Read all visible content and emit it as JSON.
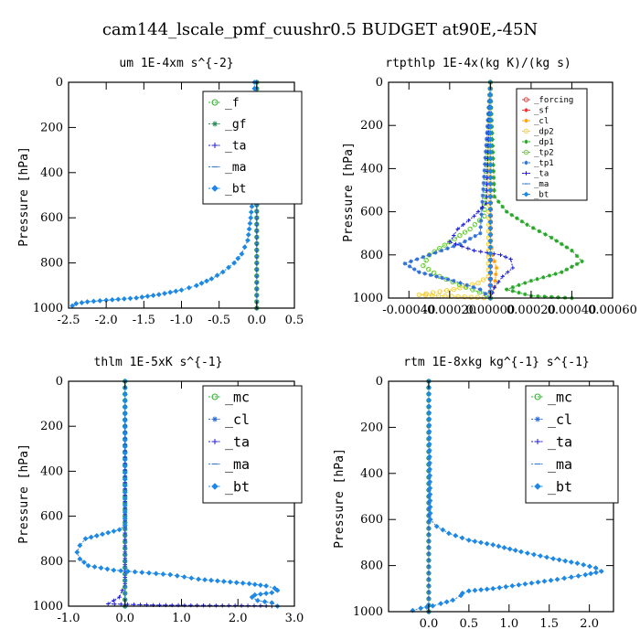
{
  "figure": {
    "title": "cam144_lscale_pmf_cuushr0.5  BUDGET at90E,-45N"
  },
  "chart_data": [
    {
      "type": "line",
      "title": "um  1E-4xm s^{-2}",
      "ylabel": "Pressure [hPa]",
      "xlabel": "",
      "xlim": [
        -2.5,
        0.5
      ],
      "ylim": [
        1000,
        0
      ],
      "xticks": [
        -2.5,
        -2.0,
        -1.5,
        -1.0,
        -0.5,
        0.0,
        0.5
      ],
      "xtick_labels": [
        "-2.5",
        "-2.0",
        "-1.5",
        "-1.0",
        "-0.5",
        "0.0",
        "0.5"
      ],
      "yticks": [
        0,
        200,
        400,
        600,
        800,
        1000
      ],
      "ytick_labels": [
        "0",
        "200",
        "400",
        "600",
        "800",
        "1000"
      ],
      "legend_position": "top-right",
      "series": [
        {
          "name": "_f",
          "color": "#2db52d",
          "marker": "circle",
          "x": [
            0,
            0
          ],
          "y": [
            0,
            1000
          ]
        },
        {
          "name": "_gf",
          "color": "#2e8b57",
          "marker": "star",
          "x": [
            0,
            0
          ],
          "y": [
            0,
            1000
          ]
        },
        {
          "name": "_ta",
          "color": "#1f1fd6",
          "marker": "plus",
          "x": [
            0,
            0
          ],
          "y": [
            0,
            1000
          ]
        },
        {
          "name": "_ma",
          "color": "#3a7fd0",
          "marker": "dash",
          "x": [
            0,
            0
          ],
          "y": [
            0,
            1000
          ]
        },
        {
          "name": "_bt",
          "color": "#1e88e5",
          "marker": "diamond",
          "x": [
            -0.03,
            -0.05,
            -0.08,
            -0.12,
            -0.2,
            -0.3,
            -0.45,
            -0.6,
            -0.8,
            -1.0,
            -1.3,
            -1.6,
            -2.0,
            -2.25,
            -2.4,
            -2.45
          ],
          "y": [
            0,
            500,
            600,
            700,
            760,
            800,
            840,
            870,
            900,
            920,
            940,
            955,
            965,
            972,
            980,
            990
          ]
        }
      ]
    },
    {
      "type": "line",
      "title": "rtpthlp  1E-4x(kg K)/(kg s)",
      "ylabel": "Pressure [hPa]",
      "xlabel": "",
      "xlim": [
        -0.0005,
        0.0006
      ],
      "ylim": [
        1000,
        0
      ],
      "xticks": [
        -0.0004,
        -0.0002,
        0.0,
        0.0002,
        0.0004,
        0.0006
      ],
      "xtick_labels": [
        "-0.00040",
        "-0.00020",
        "0.00000",
        "0.00020",
        "0.00040",
        "0.00060"
      ],
      "yticks": [
        0,
        200,
        400,
        600,
        800,
        1000
      ],
      "ytick_labels": [
        "0",
        "200",
        "400",
        "600",
        "800",
        "1000"
      ],
      "legend_position": "top-right",
      "series": [
        {
          "name": "_forcing",
          "color": "#e53935",
          "marker": "circle",
          "x": [
            0,
            0
          ],
          "y": [
            0,
            1000
          ]
        },
        {
          "name": "_sf",
          "color": "#ff3030",
          "marker": "star",
          "x": [
            0,
            0
          ],
          "y": [
            0,
            1000
          ]
        },
        {
          "name": "_cl",
          "color": "#ffa000",
          "marker": "star",
          "x": [
            0,
            0,
            1e-05,
            3e-05,
            2e-05,
            0
          ],
          "y": [
            0,
            700,
            800,
            860,
            950,
            1000
          ]
        },
        {
          "name": "_dp2",
          "color": "#f4d03f",
          "marker": "circle",
          "x": [
            0,
            -1e-05,
            -6e-05,
            -0.00018,
            -0.00035,
            0
          ],
          "y": [
            0,
            900,
            930,
            960,
            985,
            1000
          ]
        },
        {
          "name": "_dp1",
          "color": "#26a626",
          "marker": "star",
          "x": [
            0,
            2e-05,
            8e-05,
            0.00018,
            0.0003,
            0.0004,
            0.00045,
            0.00035,
            0.0002,
            8e-05,
            0.0002,
            0.0004
          ],
          "y": [
            0,
            530,
            600,
            660,
            720,
            780,
            830,
            880,
            920,
            960,
            990,
            1000
          ]
        },
        {
          "name": "_tp2",
          "color": "#66cc33",
          "marker": "circle",
          "x": [
            0,
            -3e-05,
            -0.0001,
            -0.0002,
            -0.0003,
            -0.00033,
            -0.00025,
            -0.00012,
            -2e-05,
            0
          ],
          "y": [
            0,
            620,
            680,
            740,
            800,
            850,
            900,
            950,
            985,
            1000
          ]
        },
        {
          "name": "_tp1",
          "color": "#2f6fd6",
          "marker": "star",
          "x": [
            0,
            -5e-05,
            -0.00015,
            -0.0003,
            -0.00042,
            -0.00035,
            -0.00018,
            -5e-05,
            0
          ],
          "y": [
            0,
            700,
            750,
            800,
            840,
            880,
            920,
            960,
            1000
          ]
        },
        {
          "name": "_ta",
          "color": "#1f1fd6",
          "marker": "plus",
          "x": [
            0,
            -2e-05,
            -8e-05,
            -0.00016,
            -0.0002,
            -8e-05,
            5e-05,
            0.0001,
            0.00011,
            6e-05,
            2e-05,
            0
          ],
          "y": [
            0,
            560,
            620,
            680,
            740,
            780,
            800,
            820,
            860,
            900,
            950,
            1000
          ]
        },
        {
          "name": "_ma",
          "color": "#3a7fd0",
          "marker": "dash",
          "x": [
            0,
            0
          ],
          "y": [
            0,
            1000
          ]
        },
        {
          "name": "_bt",
          "color": "#1e88e5",
          "marker": "diamond",
          "x": [
            0,
            0
          ],
          "y": [
            0,
            1000
          ]
        }
      ]
    },
    {
      "type": "line",
      "title": "thlm  1E-5xK s^{-1}",
      "ylabel": "Pressure [hPa]",
      "xlabel": "",
      "xlim": [
        -1.0,
        3.0
      ],
      "ylim": [
        1000,
        0
      ],
      "xticks": [
        -1.0,
        0.0,
        1.0,
        2.0,
        3.0
      ],
      "xtick_labels": [
        "-1.0",
        "0.0",
        "1.0",
        "2.0",
        "3.0"
      ],
      "yticks": [
        0,
        200,
        400,
        600,
        800,
        1000
      ],
      "ytick_labels": [
        "0",
        "200",
        "400",
        "600",
        "800",
        "1000"
      ],
      "legend_position": "top-right",
      "series": [
        {
          "name": "_mc",
          "color": "#2db52d",
          "marker": "circle",
          "x": [
            0,
            0
          ],
          "y": [
            0,
            1000
          ]
        },
        {
          "name": "_cl",
          "color": "#2f6fd6",
          "marker": "star",
          "x": [
            0,
            0
          ],
          "y": [
            0,
            1000
          ]
        },
        {
          "name": "_ta",
          "color": "#1f1fd6",
          "marker": "plus",
          "x": [
            0,
            0,
            -0.1,
            -0.3,
            0.5,
            1.5,
            2.4,
            2.6
          ],
          "y": [
            0,
            900,
            960,
            990,
            995,
            997,
            998,
            1000
          ]
        },
        {
          "name": "_ma",
          "color": "#3a7fd0",
          "marker": "dash",
          "x": [
            0,
            0
          ],
          "y": [
            0,
            1000
          ]
        },
        {
          "name": "_bt",
          "color": "#1e88e5",
          "marker": "diamond",
          "x": [
            0,
            0,
            -0.1,
            -0.4,
            -0.7,
            -0.8,
            -0.85,
            -0.8,
            -0.65,
            -0.2,
            0.3,
            0.8,
            1.3,
            1.75,
            2.2,
            2.5,
            2.65,
            2.7,
            2.6,
            2.3,
            2.25,
            2.35,
            2.6,
            2.7
          ],
          "y": [
            0,
            640,
            660,
            680,
            700,
            730,
            760,
            790,
            820,
            840,
            850,
            860,
            880,
            890,
            900,
            910,
            920,
            930,
            940,
            950,
            960,
            975,
            985,
            1000
          ]
        }
      ]
    },
    {
      "type": "line",
      "title": "rtm  1E-8xkg kg^{-1} s^{-1}",
      "ylabel": "Pressure [hPa]",
      "xlabel": "",
      "xlim": [
        -0.5,
        2.3
      ],
      "ylim": [
        1000,
        0
      ],
      "xticks": [
        0.0,
        0.5,
        1.0,
        1.5,
        2.0
      ],
      "xtick_labels": [
        "0.0",
        "0.5",
        "1.0",
        "1.5",
        "2.0"
      ],
      "yticks": [
        0,
        200,
        400,
        600,
        800,
        1000
      ],
      "ytick_labels": [
        "0",
        "200",
        "400",
        "600",
        "800",
        "1000"
      ],
      "legend_position": "top-right",
      "series": [
        {
          "name": "_mc",
          "color": "#2db52d",
          "marker": "circle",
          "x": [
            0,
            0
          ],
          "y": [
            0,
            1000
          ]
        },
        {
          "name": "_cl",
          "color": "#2f6fd6",
          "marker": "star",
          "x": [
            0,
            0
          ],
          "y": [
            0,
            1000
          ]
        },
        {
          "name": "_ta",
          "color": "#1f1fd6",
          "marker": "plus",
          "x": [
            0,
            0
          ],
          "y": [
            0,
            1000
          ]
        },
        {
          "name": "_ma",
          "color": "#3a7fd0",
          "marker": "dash",
          "x": [
            0,
            0
          ],
          "y": [
            0,
            1000
          ]
        },
        {
          "name": "_bt",
          "color": "#1e88e5",
          "marker": "diamond",
          "x": [
            0,
            0.02,
            0.1,
            0.25,
            0.5,
            0.8,
            1.15,
            1.55,
            1.85,
            2.08,
            2.15,
            1.95,
            1.6,
            1.2,
            0.8,
            0.5,
            0.42,
            0.4,
            0.3,
            0.15,
            0.05,
            -0.1,
            -0.2
          ],
          "y": [
            0,
            600,
            630,
            660,
            690,
            710,
            740,
            770,
            790,
            810,
            825,
            840,
            860,
            880,
            900,
            910,
            920,
            930,
            950,
            965,
            975,
            985,
            995
          ]
        }
      ]
    }
  ]
}
